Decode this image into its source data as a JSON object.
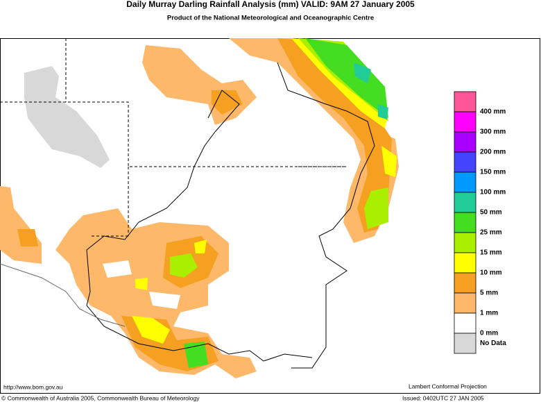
{
  "header": {
    "title": "Daily Murray Darling Rainfall Analysis (mm)  VALID: 9AM 27 January 2005",
    "subtitle": "Product of the National Meteorological and Oceanographic Centre"
  },
  "legend": {
    "colors": [
      "#ff5599",
      "#ff00ff",
      "#aa00ff",
      "#4444ff",
      "#0099ff",
      "#22cc99",
      "#44dd22",
      "#aaee00",
      "#ffff00",
      "#f5a020",
      "#fdb86a",
      "#ffffff",
      "#d8d8d8"
    ],
    "labels": [
      "400 mm",
      "300 mm",
      "200 mm",
      "150 mm",
      "100 mm",
      "50 mm",
      "25 mm",
      "15 mm",
      "10 mm",
      "5 mm",
      "1 mm",
      "0 mm",
      "No Data"
    ]
  },
  "footer": {
    "url": "http://www.bom.gov.au",
    "projection": "Lambert Conformal Projection",
    "copyright": "© Commonwealth of Australia 2005, Commonwealth Bureau of Meteorology",
    "issued": "Issued: 0402UTC 27 JAN 2005"
  }
}
